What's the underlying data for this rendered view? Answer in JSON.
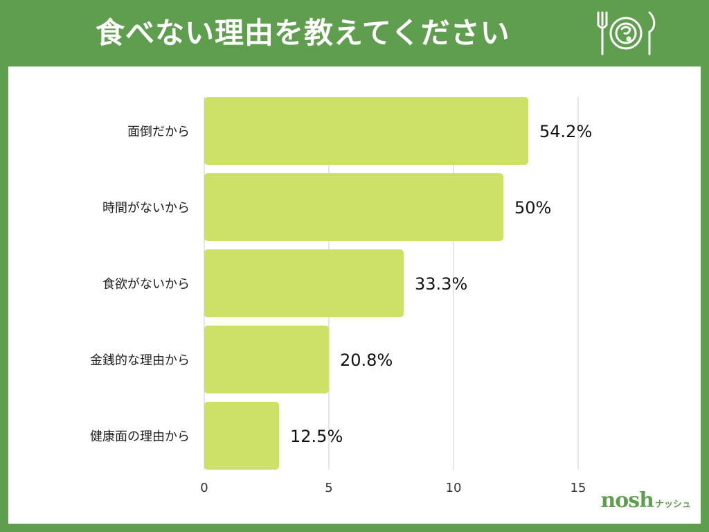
{
  "header": {
    "title": "食べない理由を教えてください",
    "icon": "plate-fork-knife-icon"
  },
  "colors": {
    "background": "#5f9e4f",
    "panel": "#ffffff",
    "bar": "#cde167",
    "grid": "#cccccc"
  },
  "chart_data": {
    "type": "bar",
    "orientation": "horizontal",
    "title": "食べない理由を教えてください",
    "categories": [
      "面倒だから",
      "時間がないから",
      "食欲がないから",
      "金銭的な理由から",
      "健康面の理由から"
    ],
    "values": [
      13,
      12,
      8,
      5,
      3
    ],
    "value_labels": [
      "54.2%",
      "50%",
      "33.3%",
      "20.8%",
      "12.5%"
    ],
    "xlim": [
      0,
      15
    ],
    "xticks": [
      "0",
      "5",
      "10",
      "15"
    ],
    "grid": true
  },
  "logo": {
    "main": "nosh",
    "sub": "ナッシュ"
  }
}
